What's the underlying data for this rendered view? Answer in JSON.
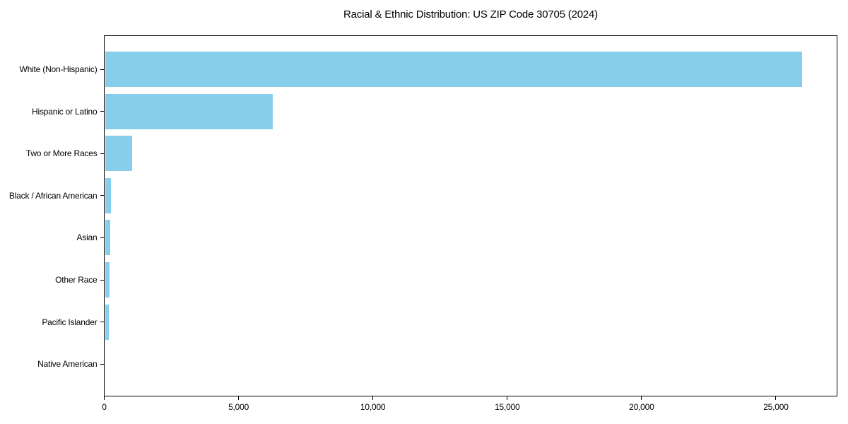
{
  "title": "Racial & Ethnic Distribution: US ZIP Code 30705 (2024)",
  "colors": {
    "bar": "#87CEEB",
    "axis": "#000000",
    "background": "#FFFFFF",
    "text": "#000000"
  },
  "chart_data": {
    "type": "bar",
    "orientation": "horizontal",
    "title": "Racial & Ethnic Distribution: US ZIP Code 30705 (2024)",
    "categories": [
      "White (Non-Hispanic)",
      "Hispanic or Latino",
      "Two or More Races",
      "Black / African American",
      "Asian",
      "Other Race",
      "Pacific Islander",
      "Native American"
    ],
    "values": [
      25950,
      6240,
      1015,
      230,
      200,
      170,
      135,
      0
    ],
    "xlabel": "",
    "ylabel": "",
    "xlim": [
      0,
      27250
    ],
    "xticks": [
      0,
      5000,
      10000,
      15000,
      20000,
      25000
    ],
    "xtick_labels": [
      "0",
      "5,000",
      "10,000",
      "15,000",
      "20,000",
      "25,000"
    ],
    "bar_color": "#87CEEB",
    "grid": false,
    "legend": null,
    "category_order": "largest value at top"
  }
}
